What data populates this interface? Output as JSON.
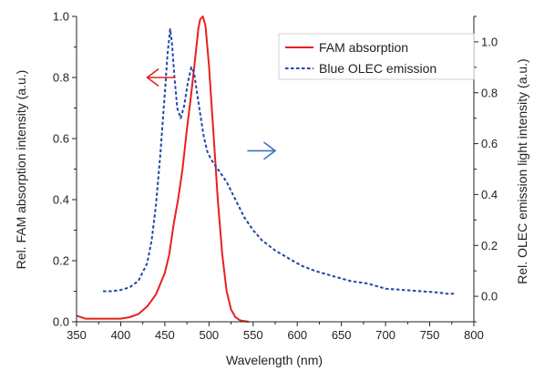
{
  "chart_data": {
    "type": "line",
    "xlabel": "Wavelength (nm)",
    "ylabel_left": "Rel. FAM absorption intensity (a.u.)",
    "ylabel_right": "Rel. OLEC emission light intensity (a.u.)",
    "xlim": [
      350,
      800
    ],
    "ylim_left": [
      0,
      1.0
    ],
    "ylim_right": [
      -0.1,
      1.1
    ],
    "x_ticks": [
      "350",
      "400",
      "450",
      "500",
      "550",
      "600",
      "650",
      "700",
      "750",
      "800"
    ],
    "y_left_ticks": [
      "0.0",
      "0.2",
      "0.4",
      "0.6",
      "0.8",
      "1.0"
    ],
    "y_right_ticks": [
      "0.0",
      "0.2",
      "0.4",
      "0.6",
      "0.8",
      "1.0"
    ],
    "legend_position": "top-right",
    "series": [
      {
        "name": "FAM absorption",
        "axis": "left",
        "color": "#e8201e",
        "style": "solid",
        "x": [
          350,
          360,
          380,
          400,
          410,
          420,
          430,
          440,
          450,
          455,
          460,
          465,
          470,
          475,
          480,
          485,
          488,
          490,
          493,
          496,
          500,
          505,
          510,
          515,
          520,
          525,
          530,
          535,
          540,
          545
        ],
        "y": [
          0.02,
          0.01,
          0.01,
          0.01,
          0.015,
          0.025,
          0.05,
          0.09,
          0.16,
          0.22,
          0.32,
          0.4,
          0.5,
          0.63,
          0.75,
          0.88,
          0.96,
          0.99,
          1.0,
          0.97,
          0.84,
          0.62,
          0.4,
          0.22,
          0.1,
          0.04,
          0.015,
          0.005,
          0.002,
          0.0
        ]
      },
      {
        "name": "Blue OLEC emission",
        "axis": "right",
        "color": "#2546a6",
        "style": "dashed",
        "x": [
          380,
          390,
          400,
          410,
          420,
          430,
          435,
          440,
          445,
          450,
          453,
          456,
          458,
          461,
          464,
          468,
          472,
          476,
          480,
          483,
          486,
          490,
          494,
          498,
          502,
          506,
          510,
          520,
          530,
          540,
          550,
          560,
          575,
          590,
          605,
          620,
          640,
          660,
          680,
          700,
          720,
          740,
          760,
          770,
          780
        ],
        "y": [
          0.02,
          0.02,
          0.025,
          0.035,
          0.06,
          0.13,
          0.22,
          0.36,
          0.56,
          0.8,
          0.95,
          1.05,
          1.0,
          0.86,
          0.74,
          0.7,
          0.75,
          0.84,
          0.9,
          0.88,
          0.81,
          0.72,
          0.63,
          0.57,
          0.54,
          0.52,
          0.5,
          0.45,
          0.38,
          0.31,
          0.26,
          0.22,
          0.18,
          0.15,
          0.12,
          0.1,
          0.08,
          0.06,
          0.05,
          0.03,
          0.025,
          0.02,
          0.015,
          0.01,
          0.01
        ]
      }
    ],
    "annotations": [
      {
        "type": "arrow",
        "direction": "left",
        "color": "#e8201e",
        "x": 430,
        "y_left": 0.8
      },
      {
        "type": "arrow",
        "direction": "right",
        "color": "#3a72c4",
        "x": 575,
        "y_left": 0.56
      }
    ]
  }
}
